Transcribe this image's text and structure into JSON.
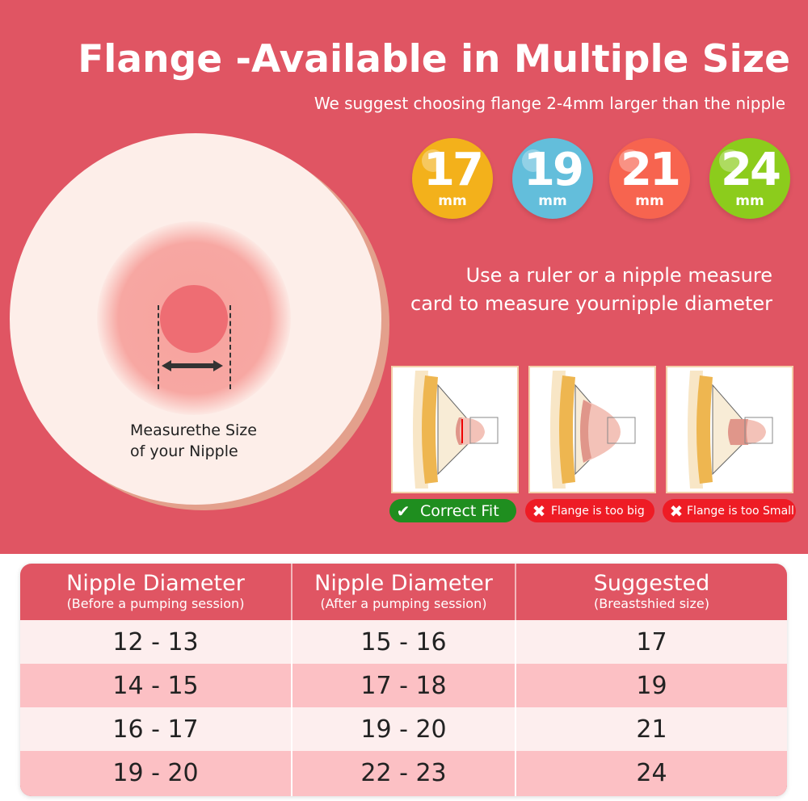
{
  "header": {
    "title": "Flange -Available in Multiple Size",
    "subtitle": "We suggest choosing flange 2-4mm larger than the nipple"
  },
  "sizes": [
    {
      "value": "17",
      "unit": "mm",
      "color": "#f3b11b"
    },
    {
      "value": "19",
      "unit": "mm",
      "color": "#63bedb"
    },
    {
      "value": "21",
      "unit": "mm",
      "color": "#f7644f"
    },
    {
      "value": "24",
      "unit": "mm",
      "color": "#8ccc1c"
    }
  ],
  "instruction": {
    "line1": "Use a ruler or a nipple measure",
    "line2": "card to measure yournipple diameter"
  },
  "measure": {
    "line1": "Measurethe Size",
    "line2": "of your Nipple"
  },
  "fits": [
    {
      "label": "Correct Fit",
      "icon": "check-icon",
      "color": "#1f8e1f"
    },
    {
      "label": "Flange is too big",
      "icon": "x-icon",
      "color": "#ee1c25"
    },
    {
      "label": "Flange is too Small",
      "icon": "x-icon",
      "color": "#ee1c25"
    }
  ],
  "table": {
    "headers": [
      {
        "title": "Nipple Diameter",
        "sub": "(Before a pumping session)"
      },
      {
        "title": "Nipple Diameter",
        "sub": "(After a pumping session)"
      },
      {
        "title": "Suggested",
        "sub": "(Breastshied size)"
      }
    ],
    "rows": [
      [
        "12 - 13",
        "15 - 16",
        "17"
      ],
      [
        "14 - 15",
        "17 - 18",
        "19"
      ],
      [
        "16 - 17",
        "19 - 20",
        "21"
      ],
      [
        "19 - 20",
        "22 - 23",
        "24"
      ]
    ],
    "row_colors": [
      "#fdeeee",
      "#fcc0c4"
    ]
  }
}
